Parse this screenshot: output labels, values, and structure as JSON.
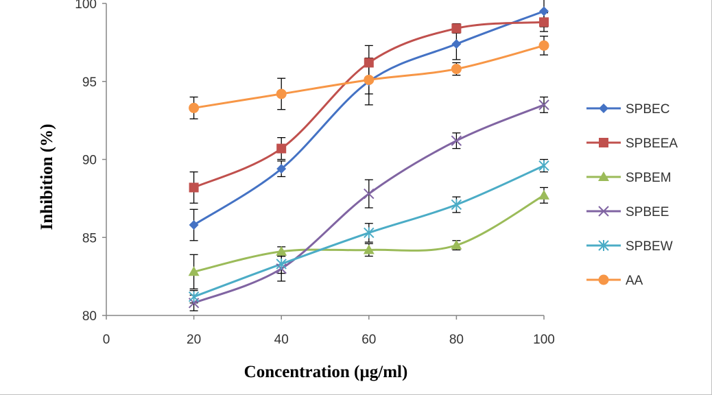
{
  "chart_data": {
    "type": "line",
    "title": "",
    "xlabel": "Concentration  (µg/ml)",
    "ylabel": "Inhibition  (%)",
    "xlim": [
      0,
      100
    ],
    "ylim": [
      80,
      100
    ],
    "x_ticks": [
      "0",
      "20",
      "40",
      "60",
      "80",
      "100"
    ],
    "y_ticks": [
      "80",
      "85",
      "90",
      "95",
      "100"
    ],
    "grid": false,
    "legend_position": "right",
    "x": [
      20,
      40,
      60,
      80,
      100
    ],
    "series": [
      {
        "name": "SPBEC",
        "color": "#4472c4",
        "marker": "diamond",
        "values": [
          85.8,
          89.4,
          95.0,
          97.4,
          99.5
        ],
        "errors": [
          1.0,
          0.5,
          1.5,
          1.0,
          1.0
        ]
      },
      {
        "name": "SPBEEA",
        "color": "#c0504d",
        "marker": "square",
        "values": [
          88.2,
          90.7,
          96.2,
          98.4,
          98.8
        ],
        "errors": [
          1.0,
          0.7,
          1.1,
          0.3,
          0.6
        ]
      },
      {
        "name": "SPBEM",
        "color": "#9bbb59",
        "marker": "triangle",
        "values": [
          82.8,
          84.1,
          84.2,
          84.5,
          87.7
        ],
        "errors": [
          1.1,
          0.3,
          0.4,
          0.3,
          0.5
        ]
      },
      {
        "name": "SPBEE",
        "color": "#8064a2",
        "marker": "x",
        "values": [
          80.8,
          83.0,
          87.8,
          91.2,
          93.5
        ],
        "errors": [
          0.5,
          0.8,
          0.9,
          0.5,
          0.5
        ]
      },
      {
        "name": "SPBEW",
        "color": "#4bacc6",
        "marker": "star",
        "values": [
          81.2,
          83.3,
          85.3,
          87.1,
          89.6
        ],
        "errors": [
          0.4,
          0.6,
          0.6,
          0.5,
          0.4
        ]
      },
      {
        "name": "AA",
        "color": "#f79646",
        "marker": "circle",
        "values": [
          93.3,
          94.2,
          95.1,
          95.8,
          97.3
        ],
        "errors": [
          0.7,
          1.0,
          0.9,
          0.4,
          0.6
        ]
      }
    ]
  }
}
